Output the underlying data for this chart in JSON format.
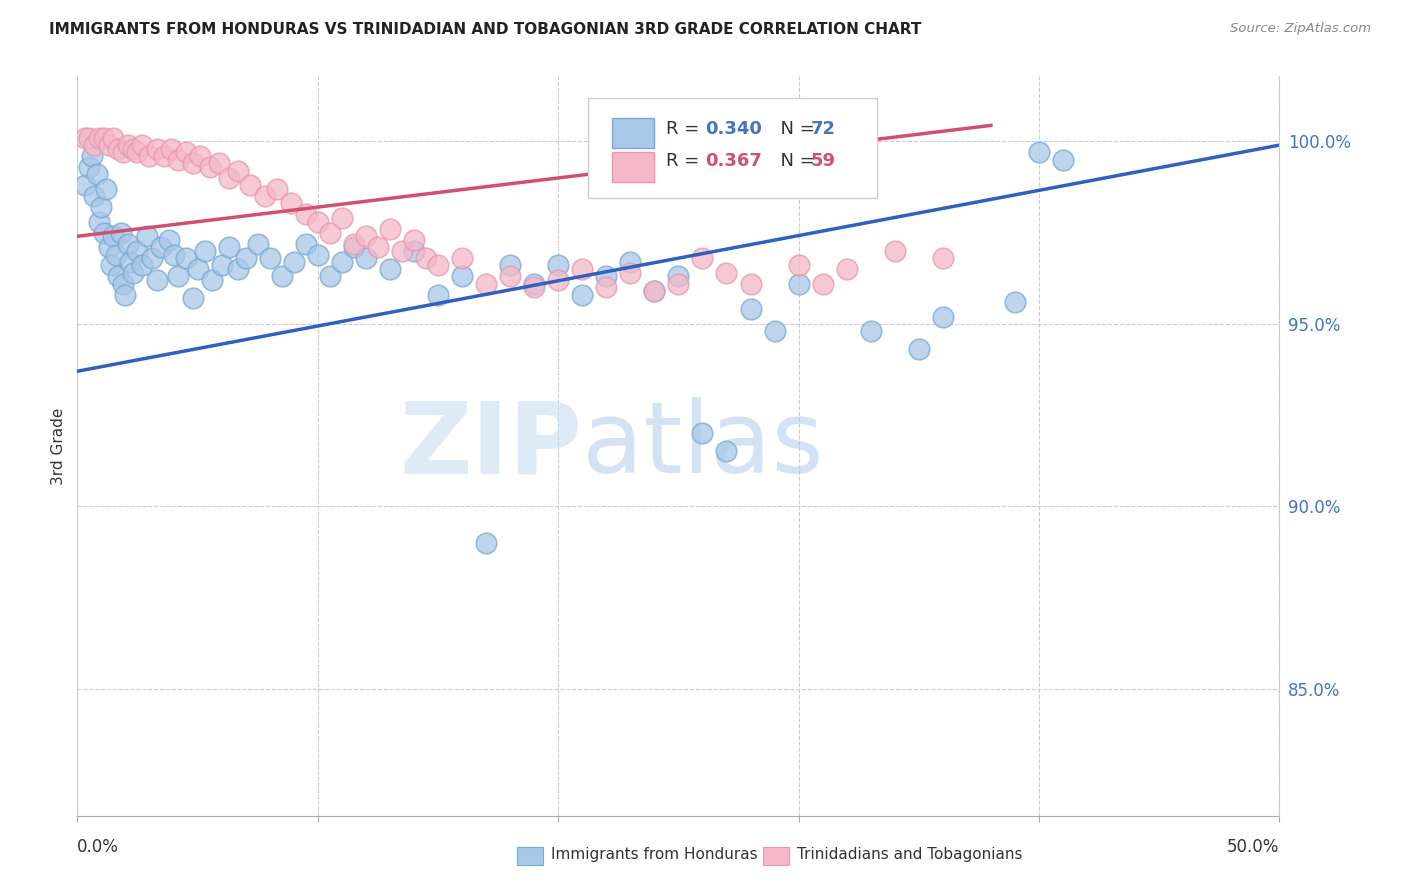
{
  "title": "IMMIGRANTS FROM HONDURAS VS TRINIDADIAN AND TOBAGONIAN 3RD GRADE CORRELATION CHART",
  "source": "Source: ZipAtlas.com",
  "ylabel": "3rd Grade",
  "xlim": [
    0.0,
    0.5
  ],
  "ylim": [
    0.815,
    1.018
  ],
  "ytick_values": [
    0.85,
    0.9,
    0.95,
    1.0
  ],
  "ytick_labels": [
    "85.0%",
    "90.0%",
    "95.0%",
    "100.0%"
  ],
  "legend_r_blue": "0.340",
  "legend_n_blue": "72",
  "legend_r_pink": "0.367",
  "legend_n_pink": "59",
  "blue_fill": "#A8C8E8",
  "pink_fill": "#F4B8C8",
  "blue_edge": "#7AAAD0",
  "pink_edge": "#E898B0",
  "blue_line_color": "#3060C0",
  "pink_line_color": "#D05070",
  "grid_color": "#CCCCCC",
  "blue_x": [
    0.003,
    0.005,
    0.006,
    0.007,
    0.008,
    0.009,
    0.01,
    0.011,
    0.012,
    0.013,
    0.014,
    0.015,
    0.016,
    0.017,
    0.018,
    0.019,
    0.02,
    0.021,
    0.022,
    0.023,
    0.025,
    0.027,
    0.029,
    0.031,
    0.033,
    0.035,
    0.038,
    0.04,
    0.042,
    0.045,
    0.048,
    0.05,
    0.053,
    0.056,
    0.06,
    0.063,
    0.067,
    0.07,
    0.075,
    0.08,
    0.085,
    0.09,
    0.095,
    0.1,
    0.105,
    0.11,
    0.115,
    0.12,
    0.13,
    0.14,
    0.15,
    0.16,
    0.17,
    0.18,
    0.19,
    0.2,
    0.21,
    0.22,
    0.23,
    0.24,
    0.25,
    0.26,
    0.27,
    0.28,
    0.29,
    0.3,
    0.33,
    0.35,
    0.36,
    0.39,
    0.4,
    0.41
  ],
  "blue_y": [
    0.988,
    0.993,
    0.996,
    0.985,
    0.991,
    0.978,
    0.982,
    0.975,
    0.987,
    0.971,
    0.966,
    0.974,
    0.969,
    0.963,
    0.975,
    0.961,
    0.958,
    0.972,
    0.967,
    0.964,
    0.97,
    0.966,
    0.974,
    0.968,
    0.962,
    0.971,
    0.973,
    0.969,
    0.963,
    0.968,
    0.957,
    0.965,
    0.97,
    0.962,
    0.966,
    0.971,
    0.965,
    0.968,
    0.972,
    0.968,
    0.963,
    0.967,
    0.972,
    0.969,
    0.963,
    0.967,
    0.971,
    0.968,
    0.965,
    0.97,
    0.958,
    0.963,
    0.89,
    0.966,
    0.961,
    0.966,
    0.958,
    0.963,
    0.967,
    0.959,
    0.963,
    0.92,
    0.915,
    0.954,
    0.948,
    0.961,
    0.948,
    0.943,
    0.952,
    0.956,
    0.997,
    0.995
  ],
  "pink_x": [
    0.003,
    0.005,
    0.007,
    0.009,
    0.011,
    0.013,
    0.015,
    0.017,
    0.019,
    0.021,
    0.023,
    0.025,
    0.027,
    0.03,
    0.033,
    0.036,
    0.039,
    0.042,
    0.045,
    0.048,
    0.051,
    0.055,
    0.059,
    0.063,
    0.067,
    0.072,
    0.078,
    0.083,
    0.089,
    0.095,
    0.1,
    0.105,
    0.11,
    0.115,
    0.12,
    0.125,
    0.13,
    0.135,
    0.14,
    0.145,
    0.15,
    0.16,
    0.17,
    0.18,
    0.19,
    0.2,
    0.21,
    0.22,
    0.23,
    0.24,
    0.25,
    0.26,
    0.27,
    0.28,
    0.3,
    0.31,
    0.32,
    0.34,
    0.36
  ],
  "pink_y": [
    1.001,
    1.001,
    0.999,
    1.001,
    1.001,
    0.999,
    1.001,
    0.998,
    0.997,
    0.999,
    0.998,
    0.997,
    0.999,
    0.996,
    0.998,
    0.996,
    0.998,
    0.995,
    0.997,
    0.994,
    0.996,
    0.993,
    0.994,
    0.99,
    0.992,
    0.988,
    0.985,
    0.987,
    0.983,
    0.98,
    0.978,
    0.975,
    0.979,
    0.972,
    0.974,
    0.971,
    0.976,
    0.97,
    0.973,
    0.968,
    0.966,
    0.968,
    0.961,
    0.963,
    0.96,
    0.962,
    0.965,
    0.96,
    0.964,
    0.959,
    0.961,
    0.968,
    0.964,
    0.961,
    0.966,
    0.961,
    0.965,
    0.97,
    0.968
  ]
}
